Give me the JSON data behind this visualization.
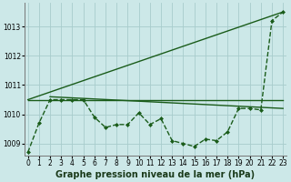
{
  "xlabel": "Graphe pression niveau de la mer (hPa)",
  "background_color": "#cce8e8",
  "grid_color": "#a8cccc",
  "line_color": "#1a5c1a",
  "x_ticks": [
    0,
    1,
    2,
    3,
    4,
    5,
    6,
    7,
    8,
    9,
    10,
    11,
    12,
    13,
    14,
    15,
    16,
    17,
    18,
    19,
    20,
    21,
    22,
    23
  ],
  "ylim": [
    1008.6,
    1013.8
  ],
  "xlim": [
    -0.3,
    23.3
  ],
  "yticks": [
    1009,
    1010,
    1011,
    1012,
    1013
  ],
  "series": [
    {
      "name": "main_marked",
      "x": [
        0,
        1,
        2,
        3,
        4,
        5,
        6,
        7,
        8,
        9,
        10,
        11,
        12,
        13,
        14,
        15,
        16,
        17,
        18,
        19,
        20,
        21,
        22,
        23
      ],
      "y": [
        1008.7,
        1009.7,
        1010.5,
        1010.5,
        1010.5,
        1010.5,
        1009.9,
        1009.55,
        1009.65,
        1009.65,
        1010.05,
        1009.65,
        1009.85,
        1009.1,
        1009.0,
        1008.9,
        1009.15,
        1009.1,
        1009.4,
        1010.2,
        1010.2,
        1010.15,
        1013.2,
        1013.5
      ],
      "marker": "D",
      "markersize": 2.0,
      "linewidth": 1.0,
      "linestyle": "--"
    },
    {
      "name": "upper_diagonal",
      "x": [
        0,
        23
      ],
      "y": [
        1010.5,
        1013.5
      ],
      "marker": null,
      "markersize": 0,
      "linewidth": 1.0,
      "linestyle": "-"
    },
    {
      "name": "lower_flat1",
      "x": [
        0,
        23
      ],
      "y": [
        1010.5,
        1010.5
      ],
      "marker": null,
      "markersize": 0,
      "linewidth": 1.0,
      "linestyle": "-"
    },
    {
      "name": "lower_flat2",
      "x": [
        2,
        23
      ],
      "y": [
        1010.6,
        1010.2
      ],
      "marker": null,
      "markersize": 0,
      "linewidth": 1.0,
      "linestyle": "-"
    }
  ],
  "tick_fontsize": 5.5,
  "label_fontsize": 7
}
